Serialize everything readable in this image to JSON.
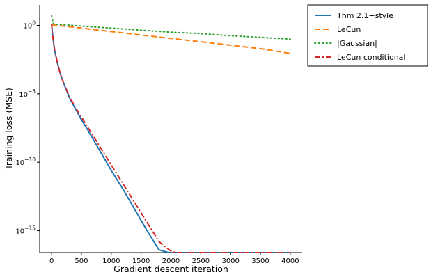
{
  "chart_data": {
    "type": "line",
    "title": "",
    "xlabel": "Gradient descent iteration",
    "ylabel": "Training loss (MSE)",
    "xlim": [
      -200,
      4200
    ],
    "ylim_log10": [
      -16.6,
      1.5
    ],
    "x_ticks": [
      0,
      500,
      1000,
      1500,
      2000,
      2500,
      3000,
      3500,
      4000
    ],
    "y_ticks": [
      {
        "value_log10": 0,
        "base": "10",
        "exp": "0"
      },
      {
        "value_log10": -5,
        "base": "10",
        "exp": "−5"
      },
      {
        "value_log10": -10,
        "base": "10",
        "exp": "−10"
      },
      {
        "value_log10": -15,
        "base": "10",
        "exp": "−15"
      }
    ],
    "yscale": "log",
    "grid": false,
    "legend_position": "top-right outside",
    "series": [
      {
        "name": "Thm 2.1−style",
        "color": "#1f77b4",
        "style": "solid",
        "x": [
          0,
          10,
          25,
          50,
          100,
          150,
          200,
          300,
          400,
          500,
          600,
          800,
          1000,
          1200,
          1400,
          1600,
          1800,
          1960,
          2000,
          2500,
          3000,
          3500,
          4000
        ],
        "log10_y": [
          0.1,
          -0.4,
          -1.0,
          -1.8,
          -2.8,
          -3.6,
          -4.2,
          -5.3,
          -6.1,
          -6.9,
          -7.6,
          -9.1,
          -10.6,
          -12.0,
          -13.5,
          -15.0,
          -16.4,
          -16.6,
          -16.6,
          -16.6,
          -16.6,
          -16.6,
          -16.6
        ]
      },
      {
        "name": "LeCun",
        "color": "#ff7f0e",
        "style": "dashed",
        "x": [
          0,
          500,
          1000,
          1500,
          2000,
          2500,
          3000,
          3500,
          4000
        ],
        "log10_y": [
          0.05,
          -0.2,
          -0.45,
          -0.7,
          -0.95,
          -1.2,
          -1.45,
          -1.7,
          -2.05
        ]
      },
      {
        "name": "|Gaussian|",
        "color": "#2ca02c",
        "style": "dotted",
        "x": [
          0,
          30,
          500,
          1000,
          1500,
          2000,
          2500,
          3000,
          3500,
          4000
        ],
        "log10_y": [
          0.7,
          0.1,
          -0.05,
          -0.2,
          -0.35,
          -0.5,
          -0.6,
          -0.75,
          -0.88,
          -1.0
        ]
      },
      {
        "name": "LeCun conditional",
        "color": "#d62728",
        "style": "dashdot",
        "x": [
          0,
          10,
          25,
          50,
          100,
          150,
          200,
          300,
          400,
          500,
          600,
          800,
          1000,
          1200,
          1400,
          1600,
          1800,
          2000,
          2080,
          2500,
          3000,
          3500,
          4000
        ],
        "log10_y": [
          0.1,
          -0.4,
          -1.0,
          -1.8,
          -2.8,
          -3.6,
          -4.2,
          -5.2,
          -6.0,
          -6.7,
          -7.4,
          -8.8,
          -10.2,
          -11.6,
          -13.0,
          -14.4,
          -15.8,
          -16.5,
          -16.6,
          -16.6,
          -16.6,
          -16.6,
          -16.6
        ]
      }
    ]
  }
}
